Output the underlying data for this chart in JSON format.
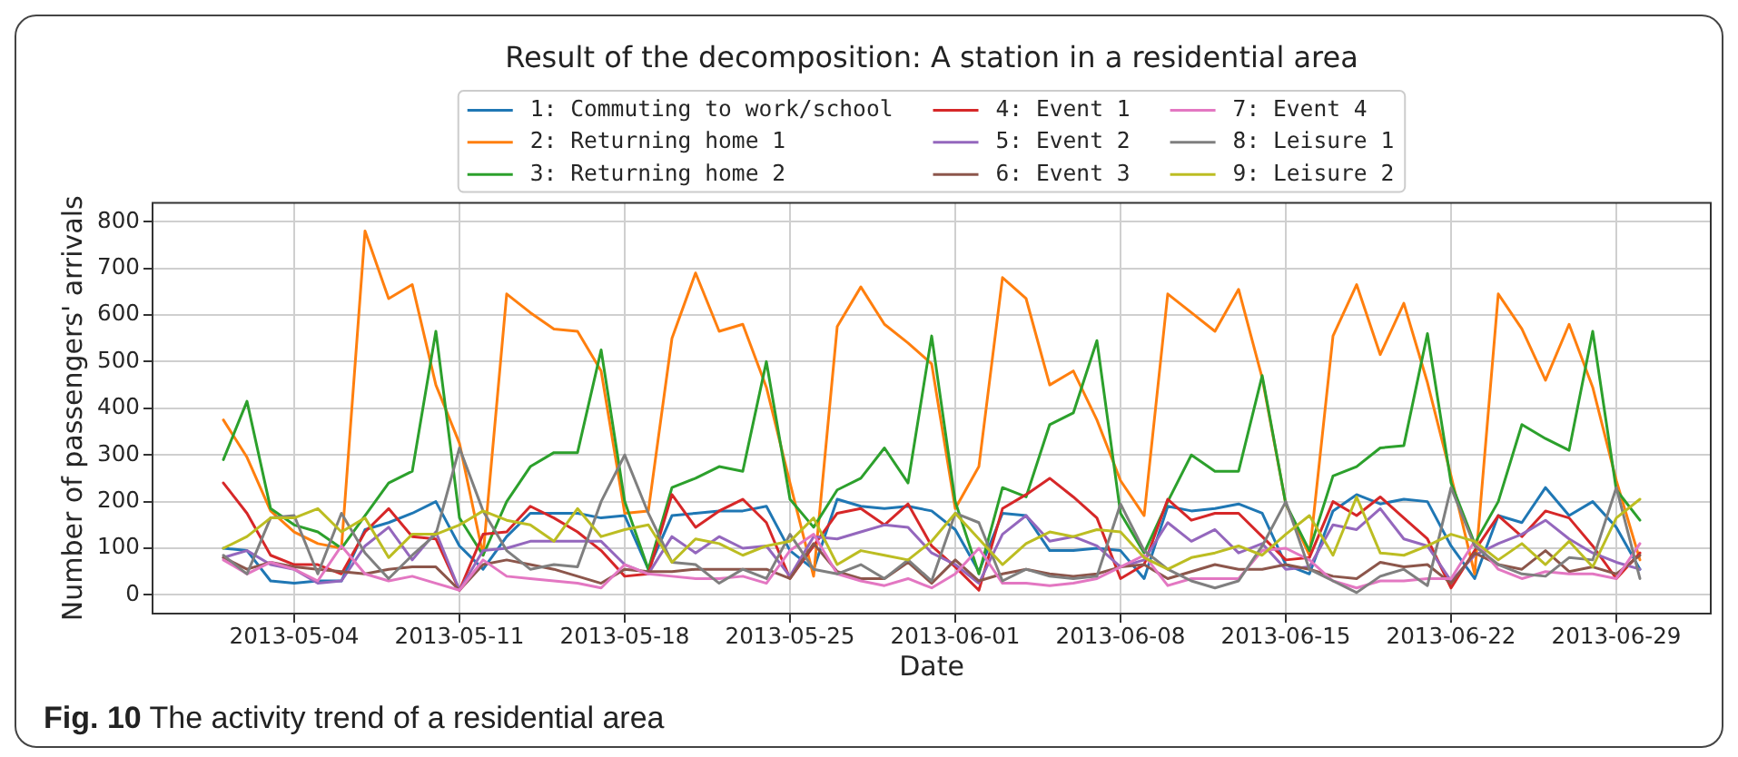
{
  "chart_data": {
    "type": "line",
    "title": "Result of the decomposition: A station in a residential area",
    "xlabel": "Date",
    "ylabel": "Number of passengers' arrivals",
    "annotations": [
      "Fig. 10 The activity trend of a residential area"
    ],
    "x": [
      "2013-05-01",
      "2013-05-02",
      "2013-05-03",
      "2013-05-04",
      "2013-05-05",
      "2013-05-06",
      "2013-05-07",
      "2013-05-08",
      "2013-05-09",
      "2013-05-10",
      "2013-05-11",
      "2013-05-12",
      "2013-05-13",
      "2013-05-14",
      "2013-05-15",
      "2013-05-16",
      "2013-05-17",
      "2013-05-18",
      "2013-05-19",
      "2013-05-20",
      "2013-05-21",
      "2013-05-22",
      "2013-05-23",
      "2013-05-24",
      "2013-05-25",
      "2013-05-26",
      "2013-05-27",
      "2013-05-28",
      "2013-05-29",
      "2013-05-30",
      "2013-05-31",
      "2013-06-01",
      "2013-06-02",
      "2013-06-03",
      "2013-06-04",
      "2013-06-05",
      "2013-06-06",
      "2013-06-07",
      "2013-06-08",
      "2013-06-09",
      "2013-06-10",
      "2013-06-11",
      "2013-06-12",
      "2013-06-13",
      "2013-06-14",
      "2013-06-15",
      "2013-06-16",
      "2013-06-17",
      "2013-06-18",
      "2013-06-19",
      "2013-06-20",
      "2013-06-21",
      "2013-06-22",
      "2013-06-23",
      "2013-06-24",
      "2013-06-25",
      "2013-06-26",
      "2013-06-27",
      "2013-06-28",
      "2013-06-29",
      "2013-06-30"
    ],
    "series": [
      {
        "name": "1: Commuting to work/school",
        "color": "#1f77b4",
        "values": [
          100,
          95,
          30,
          25,
          30,
          30,
          140,
          155,
          175,
          200,
          105,
          55,
          125,
          175,
          175,
          175,
          165,
          170,
          55,
          170,
          175,
          180,
          180,
          190,
          95,
          55,
          205,
          190,
          185,
          190,
          180,
          140,
          50,
          175,
          170,
          95,
          95,
          100,
          95,
          35,
          190,
          180,
          185,
          195,
          175,
          65,
          45,
          180,
          215,
          195,
          205,
          200,
          105,
          35,
          170,
          155,
          230,
          170,
          200,
          145,
          55
        ]
      },
      {
        "name": "2: Returning home 1",
        "color": "#ff7f0e",
        "values": [
          375,
          295,
          180,
          135,
          110,
          100,
          780,
          635,
          665,
          450,
          325,
          85,
          645,
          605,
          570,
          565,
          480,
          175,
          180,
          550,
          690,
          565,
          580,
          445,
          240,
          40,
          575,
          660,
          580,
          540,
          495,
          185,
          275,
          680,
          635,
          450,
          480,
          375,
          245,
          170,
          645,
          605,
          565,
          655,
          465,
          195,
          85,
          555,
          665,
          515,
          625,
          455,
          255,
          45,
          645,
          570,
          460,
          580,
          445,
          245,
          75
        ]
      },
      {
        "name": "3: Returning home 2",
        "color": "#2ca02c",
        "values": [
          290,
          415,
          185,
          150,
          135,
          100,
          170,
          240,
          265,
          565,
          165,
          85,
          200,
          275,
          305,
          305,
          525,
          200,
          55,
          230,
          250,
          275,
          265,
          500,
          205,
          145,
          225,
          250,
          315,
          240,
          555,
          200,
          45,
          230,
          210,
          365,
          390,
          545,
          175,
          90,
          200,
          300,
          265,
          265,
          470,
          195,
          95,
          255,
          275,
          315,
          320,
          560,
          240,
          110,
          200,
          365,
          335,
          310,
          565,
          225,
          160
        ]
      },
      {
        "name": "4: Event 1",
        "color": "#d62728",
        "values": [
          240,
          175,
          85,
          65,
          65,
          45,
          135,
          185,
          125,
          120,
          10,
          130,
          135,
          190,
          165,
          135,
          95,
          40,
          45,
          215,
          145,
          180,
          205,
          155,
          35,
          105,
          175,
          185,
          150,
          195,
          105,
          60,
          10,
          185,
          215,
          250,
          210,
          165,
          35,
          65,
          205,
          160,
          175,
          175,
          125,
          75,
          80,
          200,
          170,
          210,
          165,
          120,
          15,
          95,
          170,
          125,
          180,
          165,
          105,
          35,
          90
        ]
      },
      {
        "name": "5: Event 2",
        "color": "#9467bd",
        "values": [
          80,
          95,
          65,
          55,
          25,
          30,
          105,
          145,
          75,
          135,
          10,
          95,
          100,
          115,
          115,
          115,
          115,
          65,
          45,
          125,
          90,
          125,
          100,
          105,
          40,
          125,
          120,
          135,
          150,
          145,
          90,
          65,
          25,
          130,
          170,
          115,
          125,
          105,
          60,
          75,
          155,
          115,
          140,
          90,
          110,
          55,
          60,
          150,
          140,
          185,
          120,
          105,
          30,
          85,
          110,
          130,
          160,
          120,
          90,
          70,
          55
        ]
      },
      {
        "name": "6: Event 3",
        "color": "#8c564b",
        "values": [
          80,
          55,
          70,
          60,
          55,
          50,
          45,
          55,
          60,
          60,
          10,
          65,
          75,
          65,
          55,
          40,
          25,
          55,
          50,
          50,
          55,
          55,
          55,
          55,
          35,
          110,
          50,
          35,
          35,
          70,
          25,
          75,
          30,
          45,
          55,
          45,
          40,
          45,
          60,
          65,
          35,
          50,
          65,
          55,
          55,
          65,
          55,
          40,
          35,
          70,
          60,
          65,
          25,
          90,
          65,
          55,
          95,
          50,
          60,
          45,
          85
        ]
      },
      {
        "name": "7: Event 4",
        "color": "#e377c2",
        "values": [
          75,
          45,
          70,
          55,
          30,
          105,
          45,
          30,
          40,
          25,
          10,
          75,
          40,
          35,
          30,
          25,
          15,
          65,
          45,
          40,
          35,
          35,
          40,
          25,
          95,
          130,
          45,
          30,
          20,
          35,
          15,
          45,
          100,
          25,
          25,
          20,
          25,
          35,
          60,
          85,
          20,
          35,
          35,
          35,
          95,
          100,
          75,
          30,
          15,
          30,
          30,
          35,
          35,
          115,
          55,
          35,
          50,
          45,
          45,
          35,
          110
        ]
      },
      {
        "name": "8: Leisure 1",
        "color": "#7f7f7f",
        "values": [
          85,
          45,
          165,
          170,
          45,
          175,
          90,
          35,
          85,
          130,
          315,
          180,
          95,
          55,
          65,
          60,
          200,
          300,
          175,
          70,
          65,
          25,
          55,
          35,
          130,
          55,
          45,
          65,
          35,
          75,
          30,
          175,
          155,
          30,
          55,
          40,
          35,
          40,
          195,
          95,
          55,
          30,
          15,
          30,
          105,
          200,
          55,
          30,
          5,
          40,
          55,
          20,
          230,
          105,
          65,
          45,
          40,
          80,
          75,
          230,
          35
        ]
      },
      {
        "name": "9: Leisure 2",
        "color": "#bcbd22",
        "values": [
          100,
          125,
          165,
          165,
          185,
          135,
          165,
          80,
          130,
          130,
          150,
          180,
          160,
          150,
          115,
          185,
          125,
          140,
          150,
          70,
          120,
          110,
          85,
          105,
          115,
          165,
          65,
          95,
          85,
          75,
          115,
          175,
          120,
          65,
          110,
          135,
          125,
          140,
          135,
          80,
          55,
          80,
          90,
          105,
          85,
          130,
          170,
          85,
          210,
          90,
          85,
          105,
          130,
          115,
          75,
          110,
          65,
          115,
          60,
          165,
          205
        ]
      }
    ],
    "xlim": [
      "2013-04-28",
      "2013-07-03"
    ],
    "xticks": [
      "2013-05-04",
      "2013-05-11",
      "2013-05-18",
      "2013-05-25",
      "2013-06-01",
      "2013-06-08",
      "2013-06-15",
      "2013-06-22",
      "2013-06-29"
    ],
    "ylim": [
      -40,
      840
    ],
    "yticks": [
      0,
      100,
      200,
      300,
      400,
      500,
      600,
      700,
      800
    ],
    "grid": true,
    "legend": "top"
  }
}
